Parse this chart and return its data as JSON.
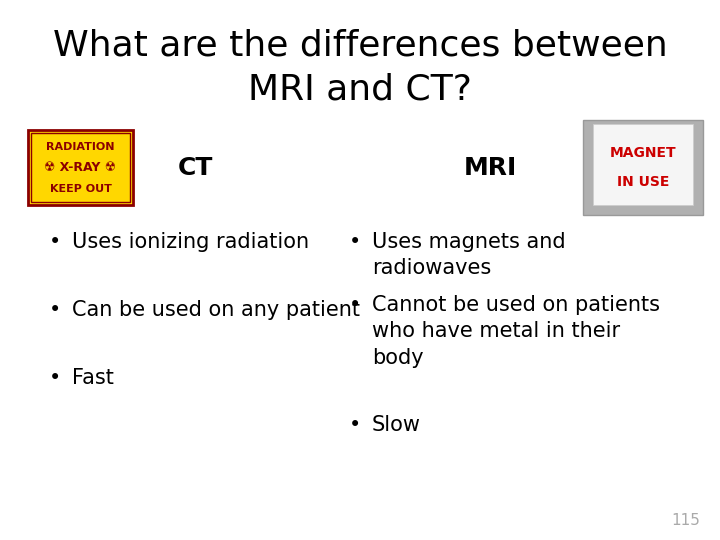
{
  "title_line1": "What are the differences between",
  "title_line2": "MRI and CT?",
  "title_fontsize": 26,
  "title_color": "#000000",
  "background_color": "#ffffff",
  "ct_label": "CT",
  "mri_label": "MRI",
  "header_fontsize": 18,
  "ct_bullets": [
    "Uses ionizing radiation",
    "Can be used on any patient",
    "Fast"
  ],
  "mri_bullets_line1": "Uses magnets and\nradiowaves",
  "mri_bullets_line2": "Cannot be used on patients\nwho have metal in their\nbody",
  "mri_bullets_line3": "Slow",
  "bullet_fontsize": 15,
  "bullet_color": "#000000",
  "page_number": "115",
  "page_num_color": "#aaaaaa",
  "page_num_fontsize": 11,
  "radiation_sign": {
    "bg_color": "#FFD700",
    "border_color": "#8B0000",
    "line1": "RADIATION",
    "line2": "☢ X-RAY ☢",
    "line3": "KEEP OUT",
    "text_color": "#8B0000",
    "fontsize": 8
  },
  "magnet_sign": {
    "bg_color": "#b0b0b0",
    "inner_color": "#f5f5f5",
    "label_color": "#cc0000",
    "line1": "MAGNET",
    "line2": "IN USE",
    "fontsize": 10
  }
}
